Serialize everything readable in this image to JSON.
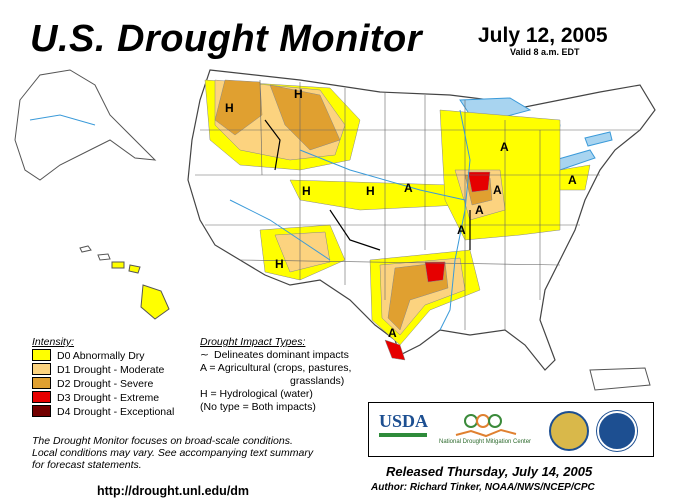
{
  "header": {
    "title": "U.S. Drought Monitor",
    "date": "July 12, 2005",
    "valid": "Valid 8 a.m. EDT"
  },
  "colors": {
    "d0": "#ffff00",
    "d1": "#fcd37f",
    "d2": "#e0a030",
    "d3": "#e60000",
    "d4": "#730000",
    "water": "#a8d4f0",
    "land": "#ffffff"
  },
  "intensity": {
    "heading": "Intensity:",
    "levels": [
      {
        "label": "D0 Abnormally Dry",
        "color": "#ffff00"
      },
      {
        "label": "D1 Drought - Moderate",
        "color": "#fcd37f"
      },
      {
        "label": "D2 Drought - Severe",
        "color": "#e0a030"
      },
      {
        "label": "D3 Drought - Extreme",
        "color": "#e60000"
      },
      {
        "label": "D4 Drought - Exceptional",
        "color": "#730000"
      }
    ]
  },
  "impacts": {
    "heading": "Drought Impact Types:",
    "lines": [
      "Delineates dominant impacts",
      "A = Agricultural (crops, pastures,",
      "grasslands)",
      "H = Hydrological (water)",
      "(No type = Both impacts)"
    ]
  },
  "map_labels": [
    "H",
    "H",
    "H",
    "H",
    "H",
    "A",
    "A",
    "A",
    "A",
    "A",
    "A",
    "A"
  ],
  "note": {
    "line1": "The Drought Monitor focuses on broad-scale conditions.",
    "line2": "Local conditions may vary.  See accompanying text summary",
    "line3": "for forecast statements."
  },
  "url": "http://drought.unl.edu/dm",
  "released": "Released Thursday, July 14, 2005",
  "author": "Author:  Richard Tinker, NOAA/NWS/NCEP/CPC",
  "logos": {
    "usda": "USDA",
    "ndmc": "National Drought Mitigation Center"
  }
}
